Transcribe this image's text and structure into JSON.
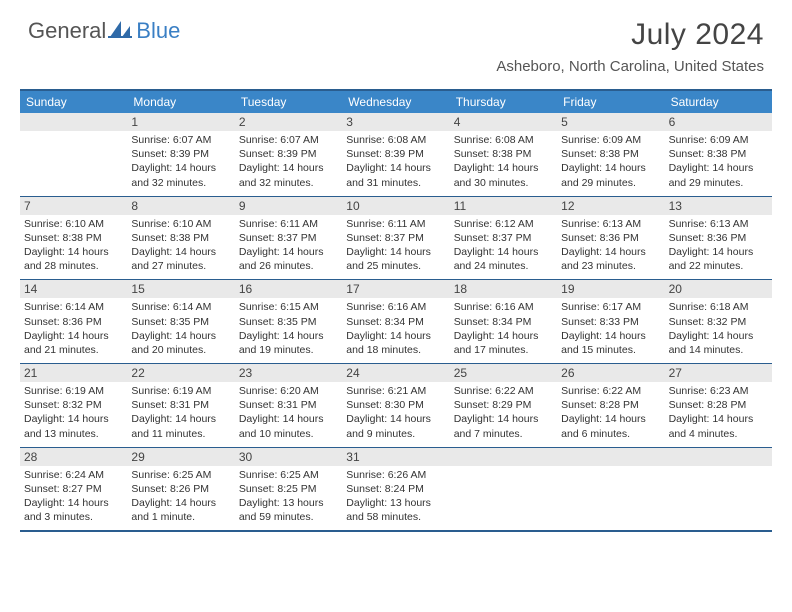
{
  "logo": {
    "general": "General",
    "blue": "Blue"
  },
  "title": "July 2024",
  "location": "Asheboro, North Carolina, United States",
  "colors": {
    "header_bg": "#3a86c8",
    "border": "#2a5d8f",
    "daynum_bg": "#e9e9e9",
    "text": "#333333",
    "title_text": "#444444"
  },
  "day_headers": [
    "Sunday",
    "Monday",
    "Tuesday",
    "Wednesday",
    "Thursday",
    "Friday",
    "Saturday"
  ],
  "weeks": [
    [
      {
        "num": "",
        "sunrise": "",
        "sunset": "",
        "daylight": ""
      },
      {
        "num": "1",
        "sunrise": "Sunrise: 6:07 AM",
        "sunset": "Sunset: 8:39 PM",
        "daylight": "Daylight: 14 hours and 32 minutes."
      },
      {
        "num": "2",
        "sunrise": "Sunrise: 6:07 AM",
        "sunset": "Sunset: 8:39 PM",
        "daylight": "Daylight: 14 hours and 32 minutes."
      },
      {
        "num": "3",
        "sunrise": "Sunrise: 6:08 AM",
        "sunset": "Sunset: 8:39 PM",
        "daylight": "Daylight: 14 hours and 31 minutes."
      },
      {
        "num": "4",
        "sunrise": "Sunrise: 6:08 AM",
        "sunset": "Sunset: 8:38 PM",
        "daylight": "Daylight: 14 hours and 30 minutes."
      },
      {
        "num": "5",
        "sunrise": "Sunrise: 6:09 AM",
        "sunset": "Sunset: 8:38 PM",
        "daylight": "Daylight: 14 hours and 29 minutes."
      },
      {
        "num": "6",
        "sunrise": "Sunrise: 6:09 AM",
        "sunset": "Sunset: 8:38 PM",
        "daylight": "Daylight: 14 hours and 29 minutes."
      }
    ],
    [
      {
        "num": "7",
        "sunrise": "Sunrise: 6:10 AM",
        "sunset": "Sunset: 8:38 PM",
        "daylight": "Daylight: 14 hours and 28 minutes."
      },
      {
        "num": "8",
        "sunrise": "Sunrise: 6:10 AM",
        "sunset": "Sunset: 8:38 PM",
        "daylight": "Daylight: 14 hours and 27 minutes."
      },
      {
        "num": "9",
        "sunrise": "Sunrise: 6:11 AM",
        "sunset": "Sunset: 8:37 PM",
        "daylight": "Daylight: 14 hours and 26 minutes."
      },
      {
        "num": "10",
        "sunrise": "Sunrise: 6:11 AM",
        "sunset": "Sunset: 8:37 PM",
        "daylight": "Daylight: 14 hours and 25 minutes."
      },
      {
        "num": "11",
        "sunrise": "Sunrise: 6:12 AM",
        "sunset": "Sunset: 8:37 PM",
        "daylight": "Daylight: 14 hours and 24 minutes."
      },
      {
        "num": "12",
        "sunrise": "Sunrise: 6:13 AM",
        "sunset": "Sunset: 8:36 PM",
        "daylight": "Daylight: 14 hours and 23 minutes."
      },
      {
        "num": "13",
        "sunrise": "Sunrise: 6:13 AM",
        "sunset": "Sunset: 8:36 PM",
        "daylight": "Daylight: 14 hours and 22 minutes."
      }
    ],
    [
      {
        "num": "14",
        "sunrise": "Sunrise: 6:14 AM",
        "sunset": "Sunset: 8:36 PM",
        "daylight": "Daylight: 14 hours and 21 minutes."
      },
      {
        "num": "15",
        "sunrise": "Sunrise: 6:14 AM",
        "sunset": "Sunset: 8:35 PM",
        "daylight": "Daylight: 14 hours and 20 minutes."
      },
      {
        "num": "16",
        "sunrise": "Sunrise: 6:15 AM",
        "sunset": "Sunset: 8:35 PM",
        "daylight": "Daylight: 14 hours and 19 minutes."
      },
      {
        "num": "17",
        "sunrise": "Sunrise: 6:16 AM",
        "sunset": "Sunset: 8:34 PM",
        "daylight": "Daylight: 14 hours and 18 minutes."
      },
      {
        "num": "18",
        "sunrise": "Sunrise: 6:16 AM",
        "sunset": "Sunset: 8:34 PM",
        "daylight": "Daylight: 14 hours and 17 minutes."
      },
      {
        "num": "19",
        "sunrise": "Sunrise: 6:17 AM",
        "sunset": "Sunset: 8:33 PM",
        "daylight": "Daylight: 14 hours and 15 minutes."
      },
      {
        "num": "20",
        "sunrise": "Sunrise: 6:18 AM",
        "sunset": "Sunset: 8:32 PM",
        "daylight": "Daylight: 14 hours and 14 minutes."
      }
    ],
    [
      {
        "num": "21",
        "sunrise": "Sunrise: 6:19 AM",
        "sunset": "Sunset: 8:32 PM",
        "daylight": "Daylight: 14 hours and 13 minutes."
      },
      {
        "num": "22",
        "sunrise": "Sunrise: 6:19 AM",
        "sunset": "Sunset: 8:31 PM",
        "daylight": "Daylight: 14 hours and 11 minutes."
      },
      {
        "num": "23",
        "sunrise": "Sunrise: 6:20 AM",
        "sunset": "Sunset: 8:31 PM",
        "daylight": "Daylight: 14 hours and 10 minutes."
      },
      {
        "num": "24",
        "sunrise": "Sunrise: 6:21 AM",
        "sunset": "Sunset: 8:30 PM",
        "daylight": "Daylight: 14 hours and 9 minutes."
      },
      {
        "num": "25",
        "sunrise": "Sunrise: 6:22 AM",
        "sunset": "Sunset: 8:29 PM",
        "daylight": "Daylight: 14 hours and 7 minutes."
      },
      {
        "num": "26",
        "sunrise": "Sunrise: 6:22 AM",
        "sunset": "Sunset: 8:28 PM",
        "daylight": "Daylight: 14 hours and 6 minutes."
      },
      {
        "num": "27",
        "sunrise": "Sunrise: 6:23 AM",
        "sunset": "Sunset: 8:28 PM",
        "daylight": "Daylight: 14 hours and 4 minutes."
      }
    ],
    [
      {
        "num": "28",
        "sunrise": "Sunrise: 6:24 AM",
        "sunset": "Sunset: 8:27 PM",
        "daylight": "Daylight: 14 hours and 3 minutes."
      },
      {
        "num": "29",
        "sunrise": "Sunrise: 6:25 AM",
        "sunset": "Sunset: 8:26 PM",
        "daylight": "Daylight: 14 hours and 1 minute."
      },
      {
        "num": "30",
        "sunrise": "Sunrise: 6:25 AM",
        "sunset": "Sunset: 8:25 PM",
        "daylight": "Daylight: 13 hours and 59 minutes."
      },
      {
        "num": "31",
        "sunrise": "Sunrise: 6:26 AM",
        "sunset": "Sunset: 8:24 PM",
        "daylight": "Daylight: 13 hours and 58 minutes."
      },
      {
        "num": "",
        "sunrise": "",
        "sunset": "",
        "daylight": ""
      },
      {
        "num": "",
        "sunrise": "",
        "sunset": "",
        "daylight": ""
      },
      {
        "num": "",
        "sunrise": "",
        "sunset": "",
        "daylight": ""
      }
    ]
  ]
}
